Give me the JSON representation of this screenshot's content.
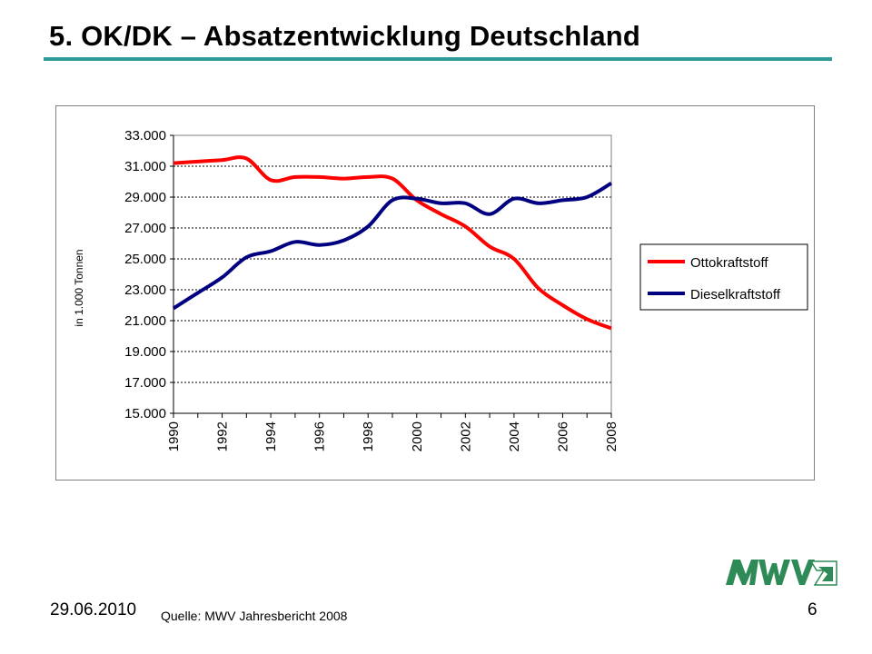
{
  "slide": {
    "title": "5. OK/DK – Absatzentwicklung Deutschland",
    "date": "29.06.2010",
    "source": "Quelle: MWV Jahresbericht 2008",
    "page_number": "6",
    "logo_text": "MWV",
    "accent_color": "#2e9a9a"
  },
  "chart_data": {
    "type": "line",
    "ylabel": "in 1.000 Tonnen",
    "xlim": [
      1990,
      2008
    ],
    "ylim": [
      15000,
      33000
    ],
    "x_ticks": [
      "1990",
      "1992",
      "1994",
      "1996",
      "1998",
      "2000",
      "2002",
      "2004",
      "2006",
      "2008"
    ],
    "y_ticks": [
      "15.000",
      "17.000",
      "19.000",
      "21.000",
      "23.000",
      "25.000",
      "27.000",
      "29.000",
      "31.000",
      "33.000"
    ],
    "grid": "horizontal dashed",
    "legend_position": "right",
    "x": [
      1990,
      1991,
      1992,
      1993,
      1994,
      1995,
      1996,
      1997,
      1998,
      1999,
      2000,
      2001,
      2002,
      2003,
      2004,
      2005,
      2006,
      2007,
      2008
    ],
    "series": [
      {
        "name": "Ottokraftstoff",
        "color": "#ff0000",
        "values": [
          31200,
          31300,
          31400,
          31500,
          30100,
          30300,
          30300,
          30200,
          30300,
          30200,
          28800,
          27900,
          27100,
          25800,
          25000,
          23100,
          22000,
          21100,
          20500
        ]
      },
      {
        "name": "Dieselkraftstoff",
        "color": "#000080",
        "values": [
          21800,
          22800,
          23800,
          25100,
          25500,
          26100,
          25900,
          26200,
          27100,
          28800,
          28900,
          28600,
          28600,
          27900,
          28900,
          28600,
          28800,
          29000,
          29900
        ]
      }
    ]
  }
}
